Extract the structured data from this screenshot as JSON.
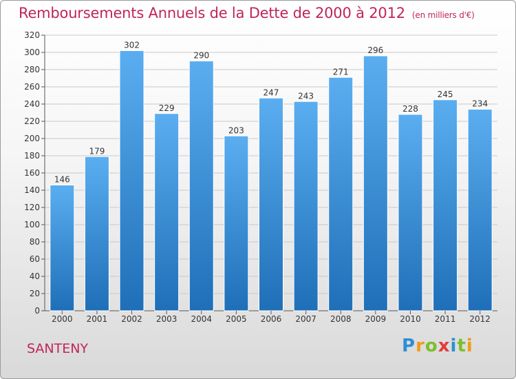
{
  "header": {
    "title": "Remboursements Annuels de la Dette de 2000 à 2012",
    "unit": "(en milliers d'€)"
  },
  "footer": {
    "commune": "SANTENY",
    "logo": "Proxiti"
  },
  "colors": {
    "title": "#c0245c",
    "bar_top": "#5aaef0",
    "bar_bottom": "#1f6fb8",
    "grid": "#c8c8c8"
  },
  "chart_data": {
    "type": "bar",
    "title": "Remboursements Annuels de la Dette de 2000 à 2012",
    "xlabel": "",
    "ylabel": "",
    "categories": [
      "2000",
      "2001",
      "2002",
      "2003",
      "2004",
      "2005",
      "2006",
      "2007",
      "2008",
      "2009",
      "2010",
      "2011",
      "2012"
    ],
    "values": [
      146,
      179,
      302,
      229,
      290,
      203,
      247,
      243,
      271,
      296,
      228,
      245,
      234
    ],
    "ylim": [
      0,
      320
    ],
    "yticks": [
      0,
      20,
      40,
      60,
      80,
      100,
      120,
      140,
      160,
      180,
      200,
      220,
      240,
      260,
      280,
      300,
      320
    ],
    "grid": true,
    "legend": "none"
  }
}
